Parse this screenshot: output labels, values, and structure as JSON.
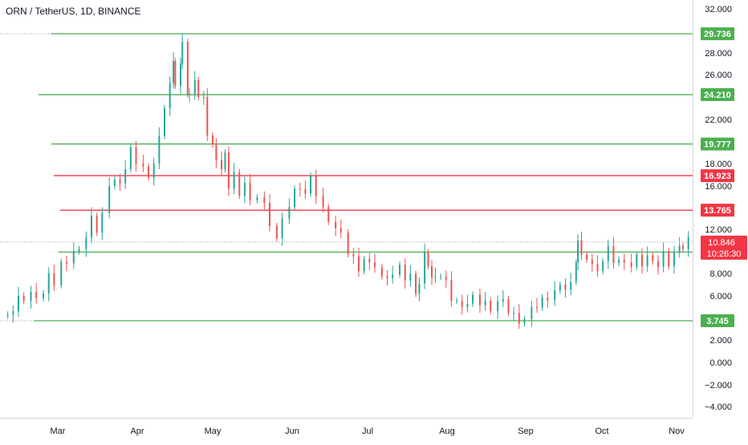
{
  "header": {
    "title": "ORN / TetherUS, 1D, BINANCE"
  },
  "chart_data": {
    "type": "candlestick",
    "title": "ORN / TetherUS, 1D, BINANCE",
    "y_ticks": [
      "32.000",
      "28.000",
      "26.000",
      "22.000",
      "18.000",
      "16.000",
      "12.000",
      "8.000",
      "6.000",
      "2.000",
      "0.000",
      "−2.000",
      "−4.000"
    ],
    "x_ticks": [
      "Mar",
      "Apr",
      "May",
      "Jun",
      "Jul",
      "Aug",
      "Sep",
      "Oct",
      "Nov"
    ],
    "horizontal_levels": [
      {
        "label": "29.736",
        "value": 29.736,
        "color": "#4caf50"
      },
      {
        "label": "24.210",
        "value": 24.21,
        "color": "#4caf50"
      },
      {
        "label": "19.777",
        "value": 19.777,
        "color": "#4caf50"
      },
      {
        "label": "16.923",
        "value": 16.923,
        "color": "#f23645"
      },
      {
        "label": "13.765",
        "value": 13.765,
        "color": "#f23645"
      },
      {
        "label": "9.939",
        "value": 9.939,
        "color": "#4caf50"
      },
      {
        "label": "3.745",
        "value": 3.745,
        "color": "#4caf50"
      }
    ],
    "current_price": {
      "label": "10.846",
      "value": 10.846,
      "countdown": "10:26:30",
      "color": "#f23645"
    },
    "series_close": [
      [
        0,
        4.2
      ],
      [
        3,
        4.8
      ],
      [
        6,
        4.6
      ],
      [
        9,
        5.5
      ],
      [
        12,
        5.8
      ],
      [
        16,
        6.1
      ],
      [
        19,
        6.3
      ],
      [
        23,
        6.2
      ],
      [
        26,
        7.5
      ],
      [
        29,
        7.2
      ],
      [
        33,
        8.8
      ],
      [
        36,
        9.4
      ],
      [
        40,
        10
      ],
      [
        43,
        9.7
      ],
      [
        47,
        11.5
      ],
      [
        50,
        13
      ],
      [
        53,
        12.2
      ],
      [
        56,
        13.5
      ],
      [
        60,
        15.5
      ],
      [
        63,
        16.8
      ],
      [
        66,
        16
      ],
      [
        69,
        18
      ],
      [
        72,
        19.5
      ],
      [
        75,
        17.5
      ],
      [
        79,
        18
      ],
      [
        82,
        16.5
      ],
      [
        85,
        18.5
      ],
      [
        88,
        20.5
      ],
      [
        91,
        22.5
      ],
      [
        94,
        25.5
      ],
      [
        96,
        27
      ],
      [
        97,
        25.5
      ],
      [
        100,
        27
      ],
      [
        101,
        28.5
      ],
      [
        104,
        24.5
      ],
      [
        105,
        24
      ],
      [
        108,
        26
      ],
      [
        110,
        24
      ],
      [
        113,
        23.5
      ],
      [
        115,
        20.8
      ],
      [
        118,
        19.5
      ],
      [
        120,
        18.8
      ],
      [
        123,
        17.5
      ],
      [
        125,
        18.5
      ],
      [
        127,
        16
      ],
      [
        130,
        17
      ],
      [
        133,
        15.6
      ],
      [
        136,
        16.3
      ],
      [
        139,
        14.2
      ],
      [
        143,
        15.2
      ],
      [
        147,
        14.2
      ],
      [
        150,
        12.8
      ],
      [
        154,
        11.2
      ],
      [
        157,
        12.5
      ],
      [
        161,
        14.3
      ],
      [
        164,
        15.5
      ],
      [
        167,
        16.2
      ],
      [
        170,
        15.3
      ],
      [
        173,
        16.4
      ],
      [
        176,
        15.3
      ],
      [
        180,
        13.8
      ],
      [
        183,
        13.2
      ],
      [
        187,
        12.1
      ],
      [
        190,
        11.2
      ],
      [
        194,
        10
      ],
      [
        197,
        9.3
      ],
      [
        200,
        8.7
      ],
      [
        203,
        9.3
      ],
      [
        206,
        8.5
      ],
      [
        209,
        8.8
      ],
      [
        213,
        7.5
      ],
      [
        216,
        8.1
      ],
      [
        219,
        7.9
      ],
      [
        223,
        8.3
      ],
      [
        226,
        7.6
      ],
      [
        229,
        7.7
      ],
      [
        232,
        6.7
      ],
      [
        234,
        7.1
      ],
      [
        237,
        9.4
      ],
      [
        239,
        8.9
      ],
      [
        241,
        7.4
      ],
      [
        243,
        8.2
      ],
      [
        246,
        7.7
      ],
      [
        249,
        6.9
      ],
      [
        252,
        5.8
      ],
      [
        255,
        5.3
      ],
      [
        258,
        5.5
      ],
      [
        261,
        5.3
      ],
      [
        264,
        5.6
      ],
      [
        268,
        5.4
      ],
      [
        271,
        5.3
      ],
      [
        274,
        5.1
      ],
      [
        278,
        5.5
      ],
      [
        281,
        5.2
      ],
      [
        284,
        4.7
      ],
      [
        287,
        4.2
      ],
      [
        290,
        4.0
      ],
      [
        293,
        3.9
      ],
      [
        297,
        4.5
      ],
      [
        300,
        5.2
      ],
      [
        303,
        5.6
      ],
      [
        306,
        6.1
      ],
      [
        310,
        6.5
      ],
      [
        313,
        6.5
      ],
      [
        316,
        6.8
      ],
      [
        319,
        7.0
      ],
      [
        322,
        9.5
      ],
      [
        323,
        11.0
      ],
      [
        325,
        9.2
      ],
      [
        328,
        9.5
      ],
      [
        331,
        8.6
      ],
      [
        334,
        8.7
      ],
      [
        337,
        9.1
      ],
      [
        340,
        10.0
      ],
      [
        343,
        9.2
      ],
      [
        346,
        9.0
      ],
      [
        349,
        9.5
      ],
      [
        353,
        8.6
      ],
      [
        356,
        9.2
      ],
      [
        359,
        8.9
      ],
      [
        362,
        9.4
      ],
      [
        365,
        9.6
      ],
      [
        368,
        8.6
      ],
      [
        371,
        9.5
      ],
      [
        374,
        8.9
      ],
      [
        377,
        9.7
      ],
      [
        380,
        11.0
      ],
      [
        382,
        10.2
      ],
      [
        385,
        10.8
      ]
    ]
  }
}
